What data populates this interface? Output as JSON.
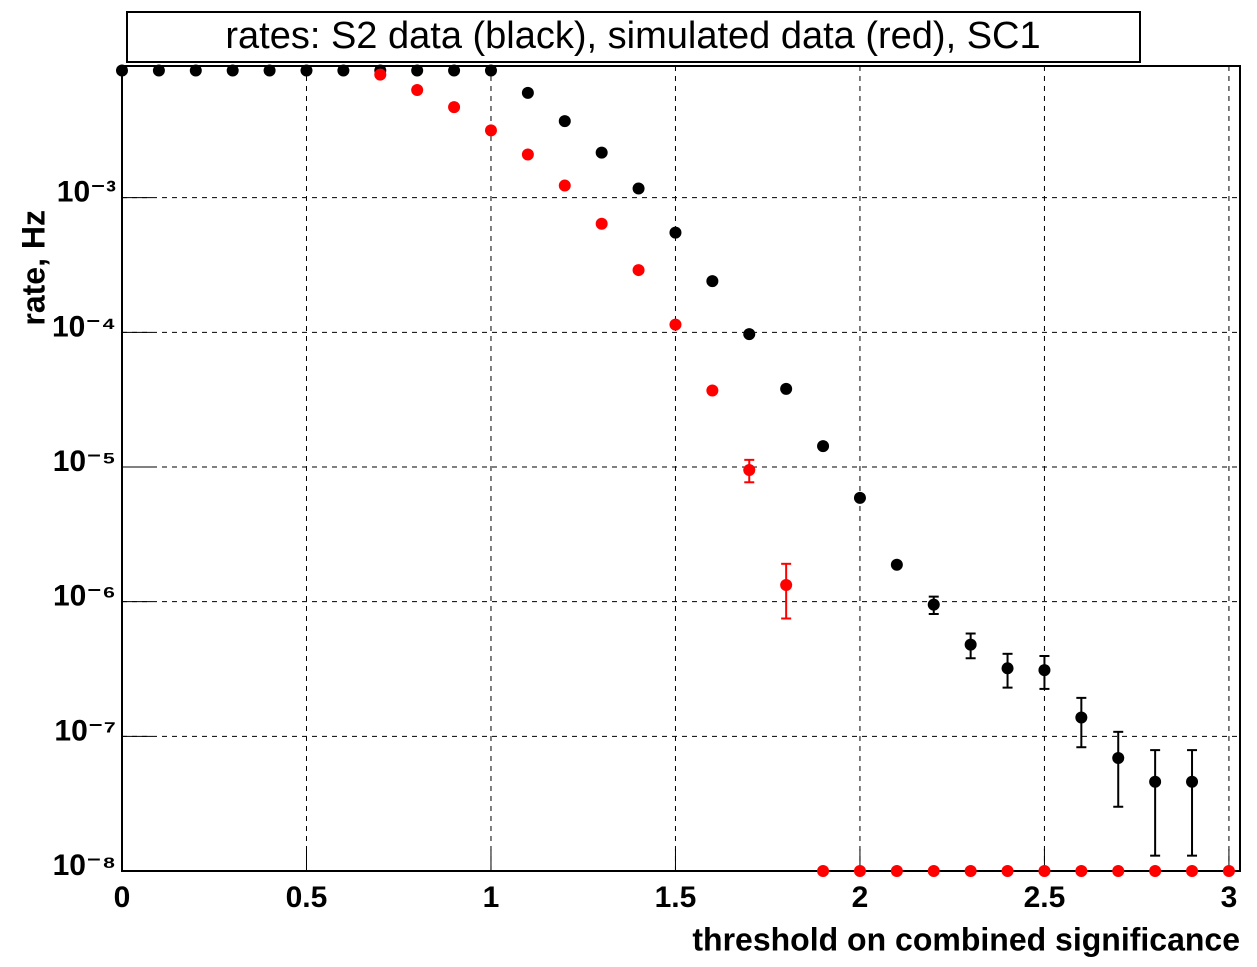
{
  "chart_data": {
    "type": "scatter",
    "title": "rates: S2 data (black), simulated data (red), SC1",
    "x_label": "threshold on combined significance",
    "y_label": "rate, Hz",
    "log_y": true,
    "grid": true,
    "xlim": [
      0,
      3.03
    ],
    "ylim": [
      1e-08,
      0.0095
    ],
    "xticks": [
      0,
      0.5,
      1,
      1.5,
      2,
      2.5,
      3
    ],
    "yticks": [
      {
        "value": 1e-08,
        "label": "10⁻⁸"
      },
      {
        "value": 1e-07,
        "label": "10⁻⁷"
      },
      {
        "value": 1e-06,
        "label": "10⁻⁶"
      },
      {
        "value": 1e-05,
        "label": "10⁻⁵"
      },
      {
        "value": 0.0001,
        "label": "10⁻⁴"
      },
      {
        "value": 0.001,
        "label": "10⁻³"
      }
    ],
    "series": [
      {
        "color": "#000000",
        "x": [
          0,
          0.1,
          0.2,
          0.3,
          0.4,
          0.5,
          0.6,
          0.7,
          0.8,
          0.9,
          1.0,
          1.1,
          1.2,
          1.3,
          1.4,
          1.5,
          1.6,
          1.7,
          1.8,
          1.9,
          2.0,
          2.1,
          2.2,
          2.3,
          2.4,
          2.5,
          2.6,
          2.7,
          2.8,
          2.9
        ],
        "values": [
          0.0088,
          0.0088,
          0.0088,
          0.0088,
          0.0088,
          0.0088,
          0.0088,
          0.0088,
          0.0088,
          0.0088,
          0.0088,
          0.006,
          0.0037,
          0.00216,
          0.00117,
          0.00055,
          0.00024,
          9.7e-05,
          3.8e-05,
          1.43e-05,
          5.9e-06,
          1.88e-06,
          9.5e-07,
          4.8e-07,
          3.2e-07,
          3.1e-07,
          1.38e-07,
          6.9e-08,
          4.6e-08,
          4.6e-08
        ],
        "errors": [
          null,
          null,
          null,
          null,
          null,
          null,
          null,
          null,
          null,
          null,
          null,
          null,
          null,
          null,
          null,
          null,
          null,
          null,
          null,
          null,
          null,
          null,
          1.4e-07,
          1e-07,
          9e-08,
          8.5e-08,
          5.5e-08,
          3.9e-08,
          3.3e-08,
          3.3e-08
        ]
      },
      {
        "color": "#ff0000",
        "x": [
          0.7,
          0.8,
          0.9,
          1.0,
          1.1,
          1.2,
          1.3,
          1.4,
          1.5,
          1.6,
          1.7,
          1.8,
          1.9,
          2.0,
          2.1,
          2.2,
          2.3,
          2.4,
          2.5,
          2.6,
          2.7,
          2.8,
          2.9,
          3.0
        ],
        "values": [
          0.0082,
          0.0063,
          0.0047,
          0.00316,
          0.00209,
          0.00123,
          0.00064,
          0.00029,
          0.000114,
          3.7e-05,
          9.5e-06,
          1.33e-06,
          1e-08,
          1e-08,
          1e-08,
          1e-08,
          1e-08,
          1e-08,
          1e-08,
          1e-08,
          1e-08,
          1e-08,
          1e-08,
          1e-08
        ],
        "errors": [
          null,
          null,
          null,
          null,
          null,
          null,
          null,
          null,
          null,
          null,
          1.8e-06,
          5.8e-07,
          null,
          null,
          null,
          null,
          null,
          null,
          null,
          null,
          null,
          null,
          null,
          null
        ]
      }
    ]
  }
}
